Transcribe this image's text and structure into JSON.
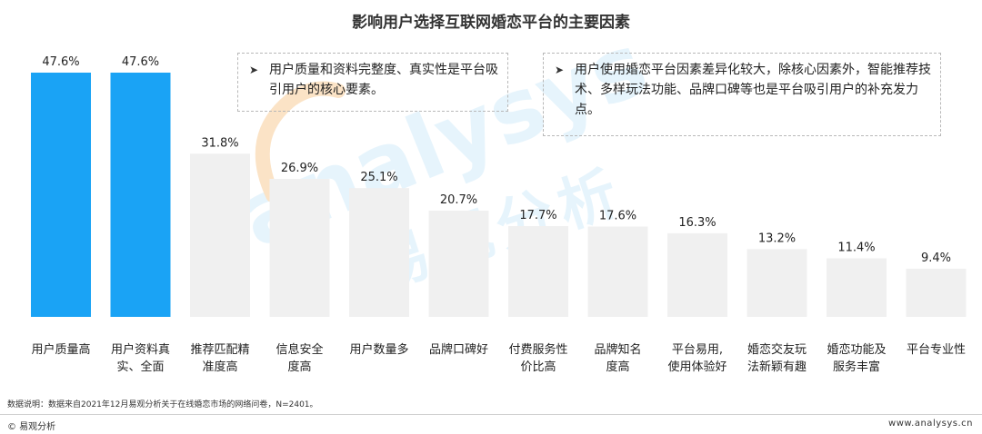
{
  "title": "影响用户选择互联网婚恋平台的主要因素",
  "notes": [
    {
      "arrow": "➤",
      "text": "用户质量和资料完整度、真实性是平台吸引用户的核心要素。"
    },
    {
      "arrow": "➤",
      "text": "用户使用婚恋平台因素差异化较大，除核心因素外，智能推荐技术、多样玩法功能、品牌口碑等也是平台吸引用户的补充发力点。"
    }
  ],
  "watermark": {
    "latin": "analysys",
    "cn": "易观分析"
  },
  "source": "数据说明：数据来自2021年12月易观分析关于在线婚恋市场的网络问卷，N=2401。",
  "copyright": "© 易观分析",
  "site": "www.analysys.cn",
  "colors": {
    "highlight": "#1aa3f5",
    "normal": "#f0f0f0",
    "watermark_blue": "#d2ebfa",
    "watermark_orange": "#fbe3c6"
  },
  "chart_data": {
    "type": "bar",
    "title": "影响用户选择互联网婚恋平台的主要因素",
    "unit": "%",
    "categories": [
      [
        "用户质量高"
      ],
      [
        "用户资料真",
        "实、全面"
      ],
      [
        "推荐匹配精",
        "准度高"
      ],
      [
        "信息安全",
        "度高"
      ],
      [
        "用户数量多"
      ],
      [
        "品牌口碑好"
      ],
      [
        "付费服务性",
        "价比高"
      ],
      [
        "品牌知名",
        "度高"
      ],
      [
        "平台易用,",
        "使用体验好"
      ],
      [
        "婚恋交友玩",
        "法新颖有趣"
      ],
      [
        "婚恋功能及",
        "服务丰富"
      ],
      [
        "平台专业性"
      ]
    ],
    "values": [
      47.6,
      47.6,
      31.8,
      26.9,
      25.1,
      20.7,
      17.7,
      17.6,
      16.3,
      13.2,
      11.4,
      9.4
    ],
    "labels": [
      "47.6%",
      "47.6%",
      "31.8%",
      "26.9%",
      "25.1%",
      "20.7%",
      "17.7%",
      "17.6%",
      "16.3%",
      "13.2%",
      "11.4%",
      "9.4%"
    ],
    "highlighted": [
      true,
      true,
      false,
      false,
      false,
      false,
      false,
      false,
      false,
      false,
      false,
      false
    ],
    "ylim": [
      0,
      47.6
    ],
    "grid": false,
    "legend": "none"
  }
}
